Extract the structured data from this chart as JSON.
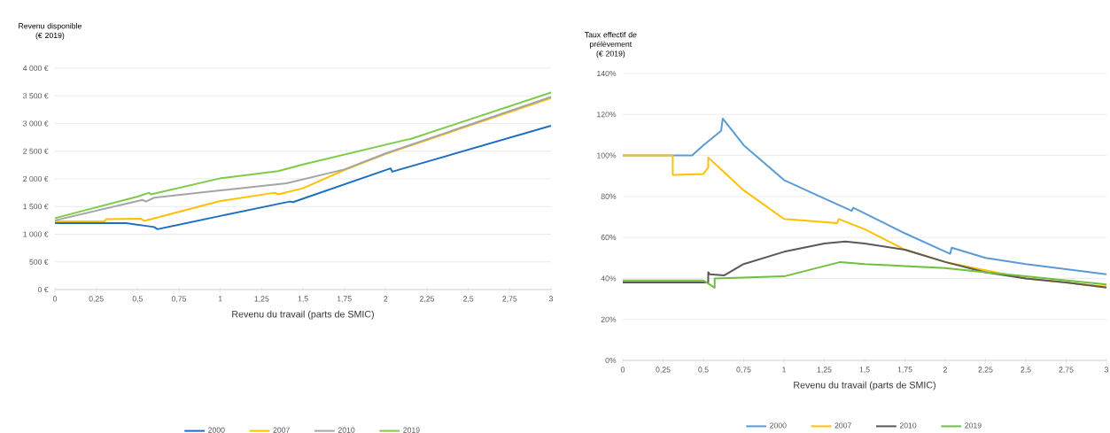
{
  "chart_data": [
    {
      "type": "line",
      "ylabel": "Revenu disponible (€ 2019)",
      "xlabel": "Revenu du travail (parts de SMIC)",
      "xlim": [
        0,
        3
      ],
      "xticks": [
        0,
        {
          "value": 0.25,
          "label": "0,25"
        },
        {
          "value": 0.5,
          "label": "0,5"
        },
        {
          "value": 0.75,
          "label": "0,75"
        },
        1,
        {
          "value": 1.25,
          "label": "1,25"
        },
        {
          "value": 1.5,
          "label": "1,5"
        },
        {
          "value": 1.75,
          "label": "1,75"
        },
        2,
        {
          "value": 2.25,
          "label": "2,25"
        },
        {
          "value": 2.5,
          "label": "2,5"
        },
        {
          "value": 2.75,
          "label": "2,75"
        },
        3
      ],
      "ylim": [
        0,
        4000
      ],
      "yticks": [
        {
          "value": 0,
          "label": "0 €"
        },
        {
          "value": 500,
          "label": "500 €"
        },
        {
          "value": 1000,
          "label": "1 000 €"
        },
        {
          "value": 1500,
          "label": "1 500 €"
        },
        {
          "value": 2000,
          "label": "2 000 €"
        },
        {
          "value": 2500,
          "label": "2 500 €"
        },
        {
          "value": 3000,
          "label": "3 000 €"
        },
        {
          "value": 3500,
          "label": "3 500 €"
        },
        {
          "value": 4000,
          "label": "4 000 €"
        }
      ],
      "grid": "y",
      "legend": "bottom",
      "series": [
        {
          "name": "2000",
          "color": "#1f6fc0",
          "x": [
            0,
            0.43,
            0.6,
            0.62,
            1,
            1.42,
            1.44,
            2.03,
            2.04,
            3
          ],
          "values": [
            1200,
            1200,
            1130,
            1090,
            1330,
            1590,
            1580,
            2190,
            2130,
            2960
          ]
        },
        {
          "name": "2007",
          "color": "#ffc000",
          "x": [
            0,
            0.3,
            0.31,
            0.52,
            0.54,
            1,
            1.33,
            1.35,
            1.5,
            1.75,
            2,
            3
          ],
          "values": [
            1230,
            1230,
            1270,
            1280,
            1240,
            1600,
            1750,
            1720,
            1830,
            2160,
            2450,
            3460
          ]
        },
        {
          "name": "2010",
          "color": "#a5a5a5",
          "x": [
            0,
            0.53,
            0.55,
            0.6,
            1,
            1.4,
            1.75,
            2,
            3
          ],
          "values": [
            1250,
            1620,
            1590,
            1660,
            1790,
            1920,
            2170,
            2460,
            3480
          ]
        },
        {
          "name": "2019",
          "color": "#7ccc48",
          "x": [
            0,
            0.5,
            0.57,
            0.58,
            1,
            1.35,
            1.5,
            2.13,
            2.15,
            3
          ],
          "values": [
            1290,
            1680,
            1750,
            1720,
            2010,
            2140,
            2260,
            2710,
            2720,
            3560
          ]
        }
      ]
    },
    {
      "type": "line",
      "ylabel": "Taux effectif de prélèvement (€ 2019)",
      "xlabel": "Revenu du travail (parts de SMIC)",
      "xlim": [
        0,
        3
      ],
      "xticks": [
        0,
        {
          "value": 0.25,
          "label": "0,25"
        },
        {
          "value": 0.5,
          "label": "0,5"
        },
        {
          "value": 0.75,
          "label": "0,75"
        },
        1,
        {
          "value": 1.25,
          "label": "1,25"
        },
        {
          "value": 1.5,
          "label": "1,5"
        },
        {
          "value": 1.75,
          "label": "1,75"
        },
        2,
        {
          "value": 2.25,
          "label": "2,25"
        },
        {
          "value": 2.5,
          "label": "2,5"
        },
        {
          "value": 2.75,
          "label": "2,75"
        },
        3
      ],
      "ylim": [
        0,
        140
      ],
      "yticks": [
        {
          "value": 0,
          "label": "0%"
        },
        {
          "value": 20,
          "label": "20%"
        },
        {
          "value": 40,
          "label": "40%"
        },
        {
          "value": 60,
          "label": "60%"
        },
        {
          "value": 80,
          "label": "80%"
        },
        {
          "value": 100,
          "label": "100%"
        },
        {
          "value": 120,
          "label": "120%"
        },
        {
          "value": 140,
          "label": "140%"
        }
      ],
      "grid": "y",
      "legend": "bottom",
      "series": [
        {
          "name": "2000",
          "color": "#5b9bd5",
          "x": [
            0,
            0.43,
            0.5,
            0.61,
            0.62,
            0.75,
            1,
            1.25,
            1.42,
            1.43,
            1.75,
            2.03,
            2.04,
            2.25,
            2.5,
            3
          ],
          "values": [
            100,
            100,
            105,
            112,
            118,
            105,
            88,
            79,
            73,
            74.5,
            62,
            52,
            55,
            50,
            47,
            42
          ]
        },
        {
          "name": "2007",
          "color": "#ffc000",
          "x": [
            0,
            0.31,
            0.31,
            0.5,
            0.53,
            0.53,
            0.75,
            1,
            1.33,
            1.34,
            1.5,
            1.75,
            2,
            2.5,
            3
          ],
          "values": [
            100,
            100,
            90.5,
            91,
            94,
            99,
            83,
            69,
            67,
            69,
            64,
            54,
            48,
            40,
            36
          ]
        },
        {
          "name": "2010",
          "color": "#595959",
          "x": [
            0,
            0.53,
            0.53,
            0.54,
            0.63,
            0.75,
            1,
            1.25,
            1.38,
            1.5,
            1.75,
            2,
            2.25,
            2.5,
            2.75,
            3
          ],
          "values": [
            38,
            38,
            43,
            42,
            41.5,
            47,
            53,
            57,
            58,
            57,
            54,
            48,
            43,
            40,
            38,
            35.5
          ]
        },
        {
          "name": "2019",
          "color": "#70c040",
          "x": [
            0,
            0.5,
            0.57,
            0.57,
            1,
            1.35,
            1.5,
            2,
            2.25,
            2.5,
            3
          ],
          "values": [
            39,
            39,
            35.5,
            40,
            41,
            48,
            47,
            45,
            43,
            41,
            37
          ]
        }
      ]
    }
  ]
}
